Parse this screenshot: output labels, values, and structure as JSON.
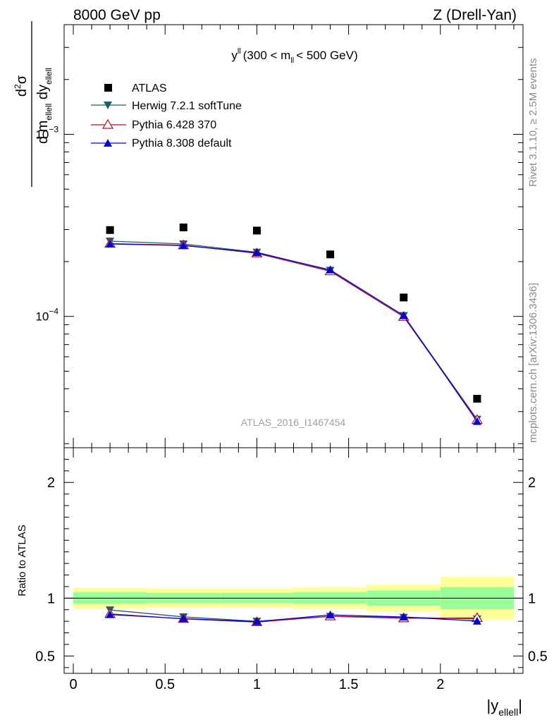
{
  "header": {
    "left": "8000 GeV pp",
    "right": "Z (Drell-Yan)"
  },
  "side_labels": {
    "rivet": "Rivet 3.1.10, ≥ 2.5M events",
    "mcplots": "mcplots.cern.ch [arXiv:1306.3436]"
  },
  "watermark": "ATLAS_2016_I1467454",
  "chart_data": [
    {
      "type": "scatter",
      "panel": "main",
      "title_main": "y",
      "title_sup": "ll",
      "title_range_a": "(300 < m",
      "title_range_sub": "ll",
      "title_range_b": "< 500 GeV)",
      "ylabel": "d²σ / d m_ellell dy_ellell [pb/GeV]",
      "yscale": "log",
      "ylim": [
        1.9e-05,
        0.004
      ],
      "xlim": [
        -0.05,
        2.45
      ],
      "yticks": [
        {
          "value": 0.001,
          "base": "10",
          "exp": "−3"
        },
        {
          "value": 0.0001,
          "base": "10",
          "exp": "−4"
        }
      ],
      "x": [
        0.2,
        0.6,
        1.0,
        1.4,
        1.8,
        2.2
      ],
      "series": [
        {
          "name": "ATLAS",
          "marker": "square",
          "color": "#000000",
          "line": false,
          "values": [
            0.000298,
            0.000308,
            0.000296,
            0.000219,
            0.000127,
            3.53e-05
          ]
        },
        {
          "name": "Herwig 7.2.1 softTune",
          "marker": "triangle-down",
          "color": "#1f5f6b",
          "line": true,
          "values": [
            0.000259,
            0.00025,
            0.000225,
            0.000179,
            0.000101,
            2.72e-05
          ]
        },
        {
          "name": "Pythia 6.428 370",
          "marker": "triangle-open",
          "color": "#b01020",
          "line": true,
          "values": [
            0.000251,
            0.000246,
            0.000222,
            0.000177,
            9.95e-05,
            2.7e-05
          ]
        },
        {
          "name": "Pythia 8.308 default",
          "marker": "triangle-up",
          "color": "#0000dd",
          "line": true,
          "values": [
            0.00025,
            0.000245,
            0.000224,
            0.00018,
            0.000101,
            2.65e-05
          ]
        }
      ]
    },
    {
      "type": "line",
      "panel": "ratio",
      "ylabel": "Ratio to ATLAS",
      "xlabel_main": "|y",
      "xlabel_sub": "ellell",
      "xlabel_end": "|",
      "ylim": [
        0.35,
        2.3
      ],
      "xlim": [
        -0.05,
        2.45
      ],
      "yticks": [
        {
          "value": 0.5,
          "label": "0.5"
        },
        {
          "value": 1,
          "label": "1"
        },
        {
          "value": 2,
          "label": "2"
        }
      ],
      "xticks": [
        {
          "value": 0,
          "label": "0"
        },
        {
          "value": 0.5,
          "label": "0.5"
        },
        {
          "value": 1,
          "label": "1"
        },
        {
          "value": 1.5,
          "label": "1.5"
        },
        {
          "value": 2,
          "label": "2"
        }
      ],
      "bands": [
        {
          "x0": 0.0,
          "x1": 0.4,
          "inner": [
            0.95,
            1.05
          ],
          "outer": [
            0.91,
            1.09
          ]
        },
        {
          "x0": 0.4,
          "x1": 0.8,
          "inner": [
            0.955,
            1.045
          ],
          "outer": [
            0.915,
            1.085
          ]
        },
        {
          "x0": 0.8,
          "x1": 1.2,
          "inner": [
            0.955,
            1.045
          ],
          "outer": [
            0.915,
            1.085
          ]
        },
        {
          "x0": 1.2,
          "x1": 1.6,
          "inner": [
            0.95,
            1.05
          ],
          "outer": [
            0.905,
            1.095
          ]
        },
        {
          "x0": 1.6,
          "x1": 2.0,
          "inner": [
            0.935,
            1.065
          ],
          "outer": [
            0.885,
            1.115
          ]
        },
        {
          "x0": 2.0,
          "x1": 2.4,
          "inner": [
            0.905,
            1.095
          ],
          "outer": [
            0.815,
            1.185
          ]
        }
      ],
      "x": [
        0.2,
        0.6,
        1.0,
        1.4,
        1.8,
        2.2
      ],
      "series": [
        {
          "name": "Herwig 7.2.1 softTune",
          "marker": "triangle-down",
          "color": "#1f5f6b",
          "values": [
            0.898,
            0.838,
            0.8,
            0.843,
            0.834,
            0.82
          ]
        },
        {
          "name": "Pythia 6.428 370",
          "marker": "triangle-open",
          "color": "#b01020",
          "values": [
            0.864,
            0.821,
            0.793,
            0.843,
            0.826,
            0.829
          ]
        },
        {
          "name": "Pythia 8.308 default",
          "marker": "triangle-up",
          "color": "#0000dd",
          "values": [
            0.858,
            0.823,
            0.797,
            0.855,
            0.837,
            0.802
          ]
        }
      ]
    }
  ]
}
